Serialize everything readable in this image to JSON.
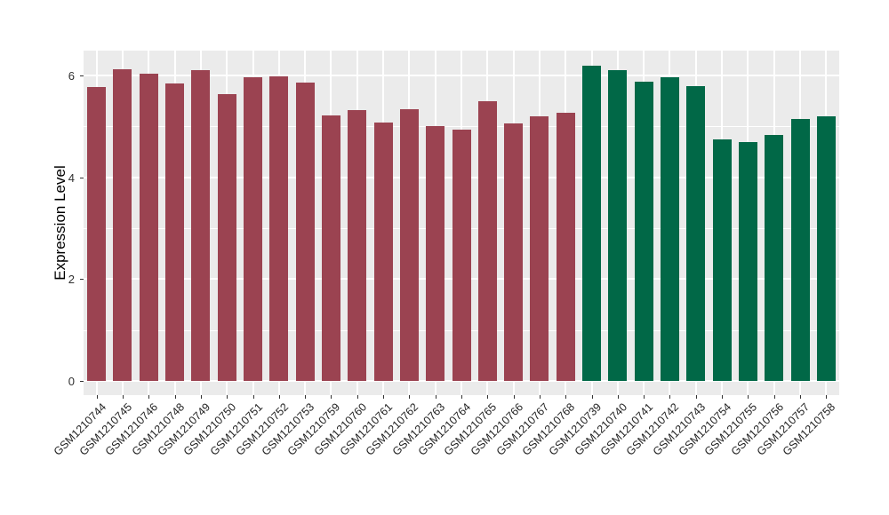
{
  "chart_data": {
    "type": "bar",
    "title": "",
    "xlabel": "",
    "ylabel": "Expression Level",
    "ylim": [
      0,
      6.5
    ],
    "yticks": [
      0,
      2,
      4,
      6
    ],
    "yticks_minor": [
      1,
      3,
      5
    ],
    "grid": "major and minor horizontal white lines, major vertical white line at each category, on gray panel",
    "legend": "none",
    "categories": [
      "GSM1210744",
      "GSM1210745",
      "GSM1210746",
      "GSM1210748",
      "GSM1210749",
      "GSM1210750",
      "GSM1210751",
      "GSM1210752",
      "GSM1210753",
      "GSM1210759",
      "GSM1210760",
      "GSM1210761",
      "GSM1210762",
      "GSM1210763",
      "GSM1210764",
      "GSM1210765",
      "GSM1210766",
      "GSM1210767",
      "GSM1210768",
      "GSM1210739",
      "GSM1210740",
      "GSM1210741",
      "GSM1210742",
      "GSM1210743",
      "GSM1210754",
      "GSM1210755",
      "GSM1210756",
      "GSM1210757",
      "GSM1210758"
    ],
    "values": [
      5.77,
      6.13,
      6.04,
      5.85,
      6.11,
      5.64,
      5.97,
      5.98,
      5.86,
      5.22,
      5.32,
      5.08,
      5.34,
      5.01,
      4.94,
      5.49,
      5.05,
      5.2,
      5.27,
      6.19,
      6.11,
      5.88,
      5.97,
      5.79,
      4.74,
      4.7,
      4.83,
      5.15,
      5.2
    ],
    "groups": [
      "group1",
      "group1",
      "group1",
      "group1",
      "group1",
      "group1",
      "group1",
      "group1",
      "group1",
      "group1",
      "group1",
      "group1",
      "group1",
      "group1",
      "group1",
      "group1",
      "group1",
      "group1",
      "group1",
      "group2",
      "group2",
      "group2",
      "group2",
      "group2",
      "group2",
      "group2",
      "group2",
      "group2",
      "group2"
    ],
    "colors": {
      "group1": "#9B4351",
      "group2": "#016847",
      "panel_background": "#EBEBEB",
      "gridline": "#FFFFFF",
      "axis_text": "#1F1F1F"
    }
  }
}
